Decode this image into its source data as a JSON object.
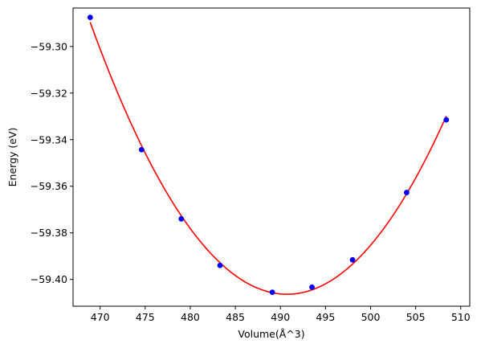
{
  "chart_data": {
    "type": "scatter",
    "xlabel": "Volume(Å^3)",
    "ylabel": "Energy (eV)",
    "xlim": [
      467.0,
      511.0
    ],
    "ylim": [
      -59.4115,
      -59.2835
    ],
    "xticks": [
      470,
      475,
      480,
      485,
      490,
      495,
      500,
      505,
      510
    ],
    "yticks": [
      -59.3,
      -59.32,
      -59.34,
      -59.36,
      -59.38,
      -59.4
    ],
    "grid": false,
    "series": [
      {
        "kind": "points",
        "color": "#0000ff",
        "marker": "circle",
        "x": [
          468.9,
          474.6,
          479.0,
          483.3,
          489.1,
          493.5,
          498.0,
          504.0,
          508.4
        ],
        "y": [
          -59.2875,
          -59.3443,
          -59.374,
          -59.394,
          -59.4055,
          -59.4033,
          -59.3916,
          -59.3627,
          -59.3315
        ]
      },
      {
        "kind": "fit-curve",
        "color": "#ff0000",
        "vertex_x": 490.0,
        "vertex_y": -59.4057,
        "x_range": [
          468.9,
          508.4
        ]
      }
    ]
  }
}
